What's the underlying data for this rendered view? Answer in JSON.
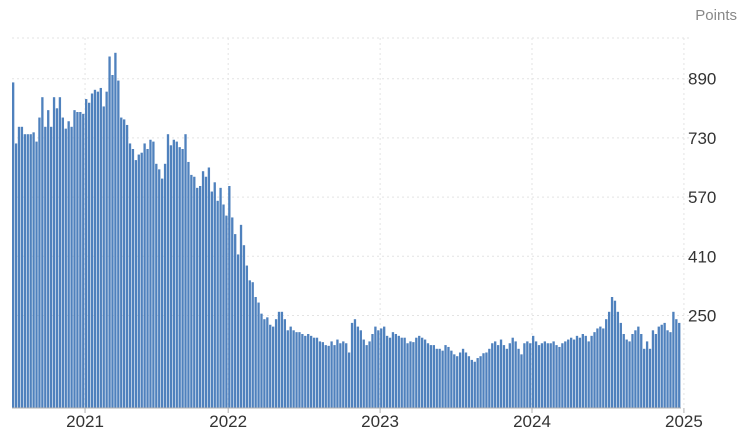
{
  "chart_data": {
    "type": "bar",
    "unit_label": "Points",
    "color": "#4f81bd",
    "grid": true,
    "y_axis_side": "right",
    "ylim": [
      0,
      1000
    ],
    "yticks": [
      250,
      410,
      570,
      730,
      890
    ],
    "xticks": [
      {
        "label": "2021",
        "index": 25
      },
      {
        "label": "2022",
        "index": 74
      },
      {
        "label": "2023",
        "index": 126
      },
      {
        "label": "2024",
        "index": 178
      },
      {
        "label": "2025",
        "index": 230
      }
    ],
    "values": [
      880,
      715,
      760,
      760,
      740,
      740,
      740,
      745,
      720,
      785,
      840,
      760,
      805,
      760,
      840,
      810,
      840,
      785,
      755,
      775,
      760,
      805,
      800,
      800,
      795,
      835,
      825,
      850,
      860,
      855,
      865,
      815,
      855,
      950,
      900,
      960,
      885,
      785,
      780,
      765,
      715,
      700,
      670,
      685,
      690,
      715,
      700,
      725,
      720,
      660,
      645,
      620,
      660,
      740,
      710,
      725,
      720,
      705,
      700,
      740,
      665,
      630,
      625,
      595,
      600,
      640,
      625,
      650,
      585,
      610,
      560,
      595,
      550,
      520,
      600,
      515,
      470,
      415,
      495,
      440,
      385,
      345,
      340,
      300,
      285,
      255,
      240,
      245,
      225,
      220,
      240,
      260,
      260,
      240,
      210,
      220,
      210,
      205,
      205,
      200,
      195,
      200,
      195,
      190,
      190,
      180,
      178,
      170,
      168,
      180,
      170,
      185,
      175,
      180,
      175,
      150,
      230,
      240,
      220,
      210,
      185,
      170,
      180,
      200,
      220,
      210,
      215,
      220,
      195,
      190,
      205,
      200,
      195,
      190,
      190,
      175,
      180,
      178,
      190,
      195,
      190,
      185,
      175,
      170,
      170,
      160,
      160,
      155,
      170,
      165,
      155,
      145,
      140,
      150,
      160,
      150,
      140,
      130,
      125,
      135,
      140,
      148,
      150,
      160,
      175,
      180,
      170,
      185,
      170,
      160,
      175,
      190,
      180,
      160,
      145,
      175,
      180,
      175,
      195,
      180,
      170,
      175,
      180,
      175,
      175,
      180,
      170,
      165,
      175,
      180,
      185,
      190,
      185,
      195,
      190,
      200,
      195,
      180,
      195,
      205,
      215,
      220,
      215,
      240,
      260,
      300,
      290,
      260,
      230,
      200,
      185,
      180,
      200,
      210,
      220,
      200,
      160,
      180,
      160,
      210,
      200,
      220,
      225,
      230,
      210,
      205,
      260,
      240,
      230
    ]
  }
}
